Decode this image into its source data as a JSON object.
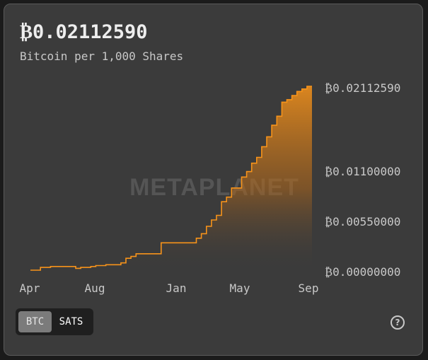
{
  "header": {
    "value": "₿0.02112590",
    "subtitle": "Bitcoin per 1,000 Shares"
  },
  "watermark": "METAPLANET",
  "toggle": {
    "btc_label": "BTC",
    "sats_label": "SATS",
    "selected": "BTC"
  },
  "colors": {
    "line": "#f7931a",
    "background": "#3b3b3b",
    "text": "#c8c8c8"
  },
  "help_icon": "question-circle-icon",
  "chart_data": {
    "type": "area",
    "title": "",
    "xlabel": "",
    "ylabel": "",
    "x_tick_labels": [
      "Apr",
      "Aug",
      "Jan",
      "May",
      "Sep"
    ],
    "y_tick_labels": [
      "₿0.02112590",
      "₿0.01100000",
      "₿0.00550000",
      "₿0.00000000"
    ],
    "y_tick_values": [
      0.0211259,
      0.011,
      0.0055,
      0.0
    ],
    "y_scale": "non-linear (ticks as printed)",
    "grid": false,
    "legend": "none",
    "series": [
      {
        "values": [
          0.0,
          0.0,
          0.0003,
          0.0003,
          0.0004,
          0.0004,
          0.0004,
          0.0004,
          0.0004,
          0.0002,
          0.0003,
          0.0003,
          0.0004,
          0.0005,
          0.0005,
          0.0006,
          0.0006,
          0.0006,
          0.0008,
          0.0013,
          0.0015,
          0.0018,
          0.0018,
          0.0018,
          0.0018,
          0.0018,
          0.003,
          0.003,
          0.003,
          0.003,
          0.003,
          0.003,
          0.003,
          0.0035,
          0.004,
          0.0048,
          0.0055,
          0.006,
          0.0075,
          0.008,
          0.009,
          0.009,
          0.0102,
          0.0108,
          0.0118,
          0.0125,
          0.0138,
          0.015,
          0.0164,
          0.0175,
          0.0192,
          0.0195,
          0.02,
          0.0205,
          0.0208,
          0.0211259,
          0.0211259
        ]
      }
    ]
  }
}
